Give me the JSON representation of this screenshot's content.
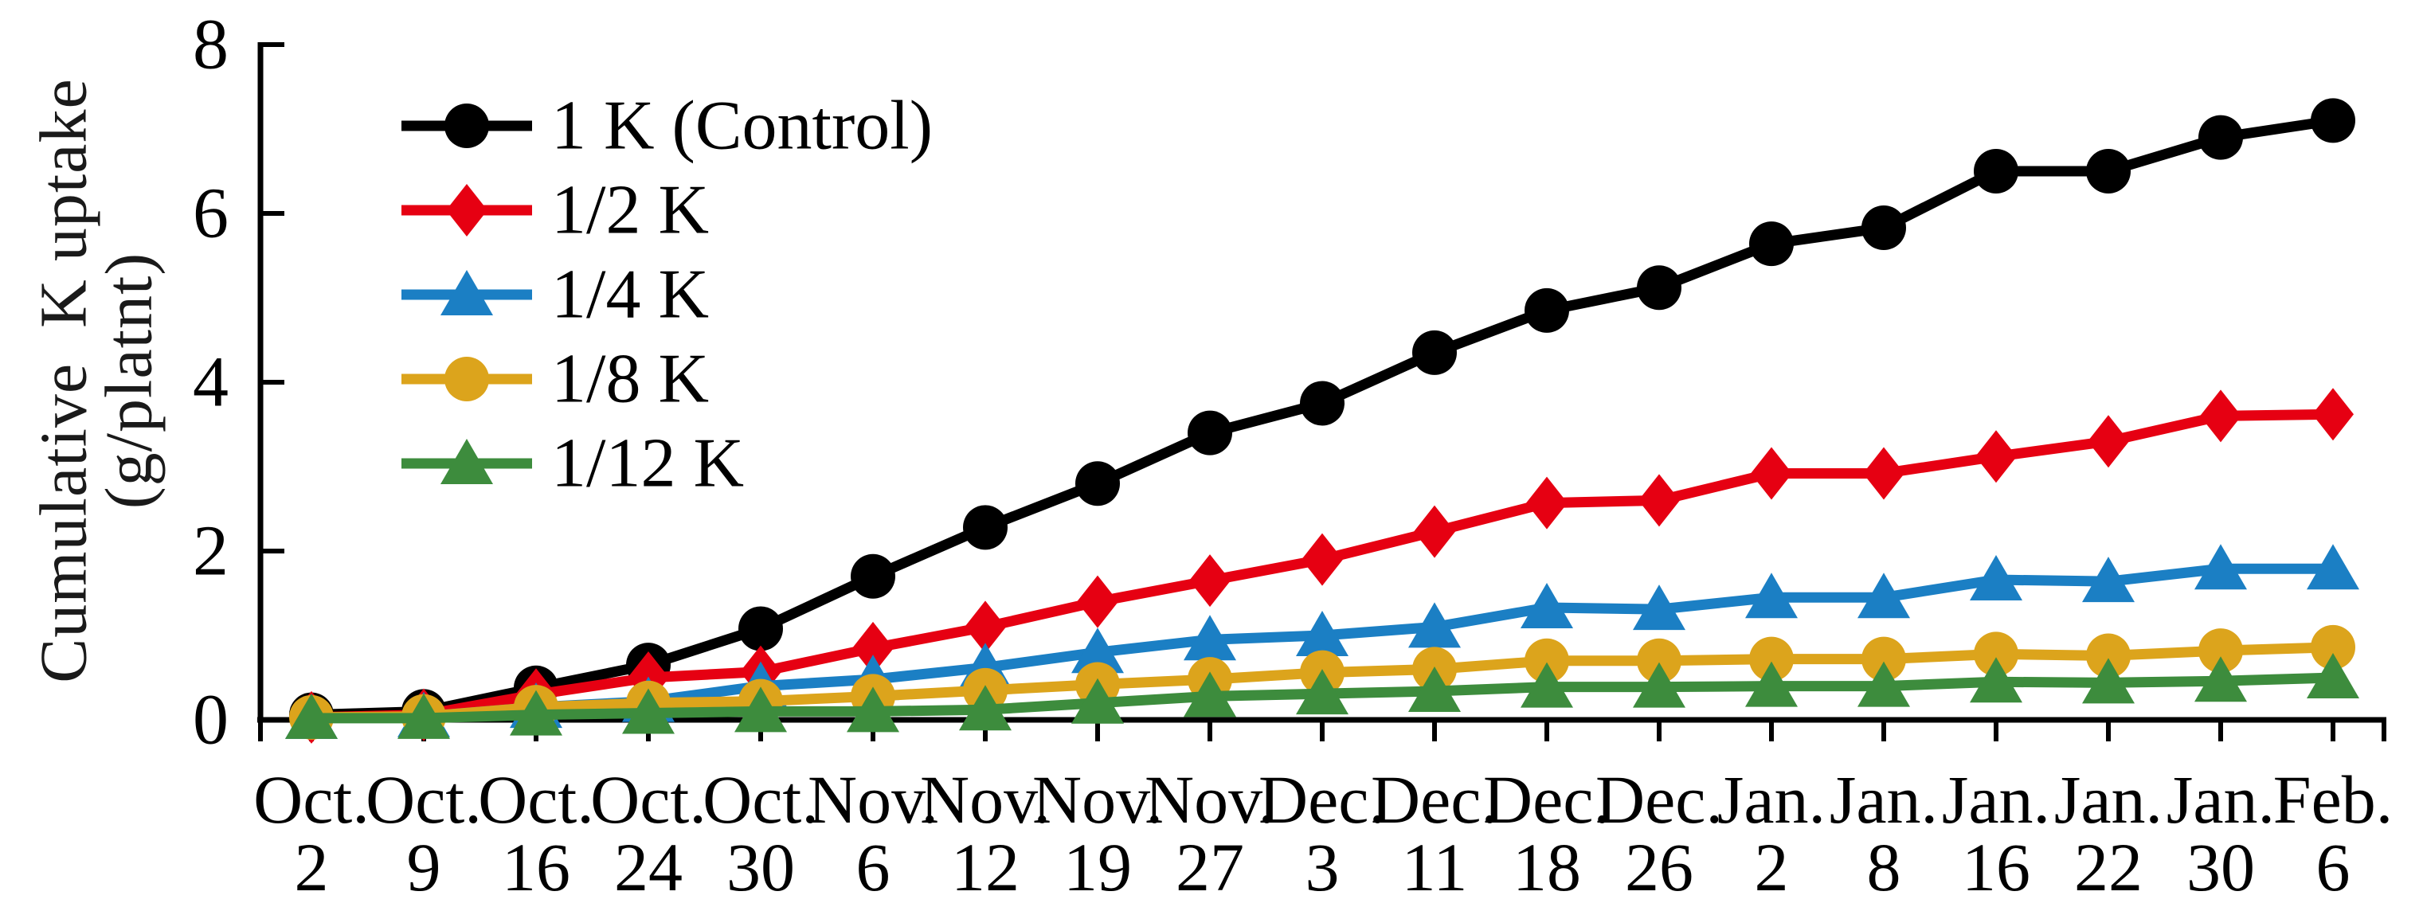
{
  "chart_data": {
    "type": "line",
    "title": "",
    "ylabel": "Cumulative  K uptake",
    "ylabel_unit": "(g/platnt)",
    "xlabel": "",
    "ylim": [
      0,
      8
    ],
    "yticks": [
      0,
      2,
      4,
      6,
      8
    ],
    "grid": false,
    "legend_position": "top-left-inside",
    "x_months": [
      "Oct.",
      "Oct.",
      "Oct.",
      "Oct.",
      "Oct.",
      "Nov.",
      "Nov.",
      "Nov.",
      "Nov.",
      "Dec.",
      "Dec.",
      "Dec.",
      "Dec.",
      "Jan.",
      "Jan.",
      "Jan.",
      "Jan.",
      "Jan.",
      "Feb."
    ],
    "x_days": [
      "2",
      "9",
      "16",
      "24",
      "30",
      "6",
      "12",
      "19",
      "27",
      "3",
      "11",
      "18",
      "26",
      "2",
      "8",
      "16",
      "22",
      "30",
      "6"
    ],
    "series": [
      {
        "name": "1 K (Control)",
        "color": "#000000",
        "marker": "circle",
        "values": [
          0.06,
          0.1,
          0.38,
          0.65,
          1.08,
          1.7,
          2.28,
          2.8,
          3.4,
          3.75,
          4.35,
          4.85,
          5.12,
          5.64,
          5.83,
          6.5,
          6.5,
          6.9,
          7.1
        ]
      },
      {
        "name": "1/2 K",
        "color": "#e60012",
        "marker": "diamond",
        "values": [
          0.03,
          0.06,
          0.3,
          0.5,
          0.57,
          0.85,
          1.1,
          1.4,
          1.65,
          1.9,
          2.23,
          2.57,
          2.6,
          2.92,
          2.92,
          3.12,
          3.3,
          3.6,
          3.62
        ]
      },
      {
        "name": "1/4 K",
        "color": "#1b7fc4",
        "marker": "triangle",
        "values": [
          0.02,
          0.04,
          0.15,
          0.22,
          0.4,
          0.48,
          0.62,
          0.8,
          0.95,
          1.0,
          1.1,
          1.33,
          1.31,
          1.45,
          1.45,
          1.66,
          1.64,
          1.79,
          1.79
        ]
      },
      {
        "name": "1/8 K",
        "color": "#dca41c",
        "marker": "circle",
        "values": [
          0.03,
          0.04,
          0.15,
          0.2,
          0.22,
          0.28,
          0.35,
          0.42,
          0.48,
          0.56,
          0.6,
          0.7,
          0.7,
          0.72,
          0.72,
          0.78,
          0.76,
          0.82,
          0.86
        ]
      },
      {
        "name": "1/12 K",
        "color": "#3d8c3d",
        "marker": "triangle",
        "values": [
          0.02,
          0.02,
          0.06,
          0.08,
          0.1,
          0.1,
          0.12,
          0.2,
          0.28,
          0.31,
          0.34,
          0.39,
          0.39,
          0.4,
          0.4,
          0.45,
          0.44,
          0.46,
          0.5
        ]
      }
    ]
  }
}
